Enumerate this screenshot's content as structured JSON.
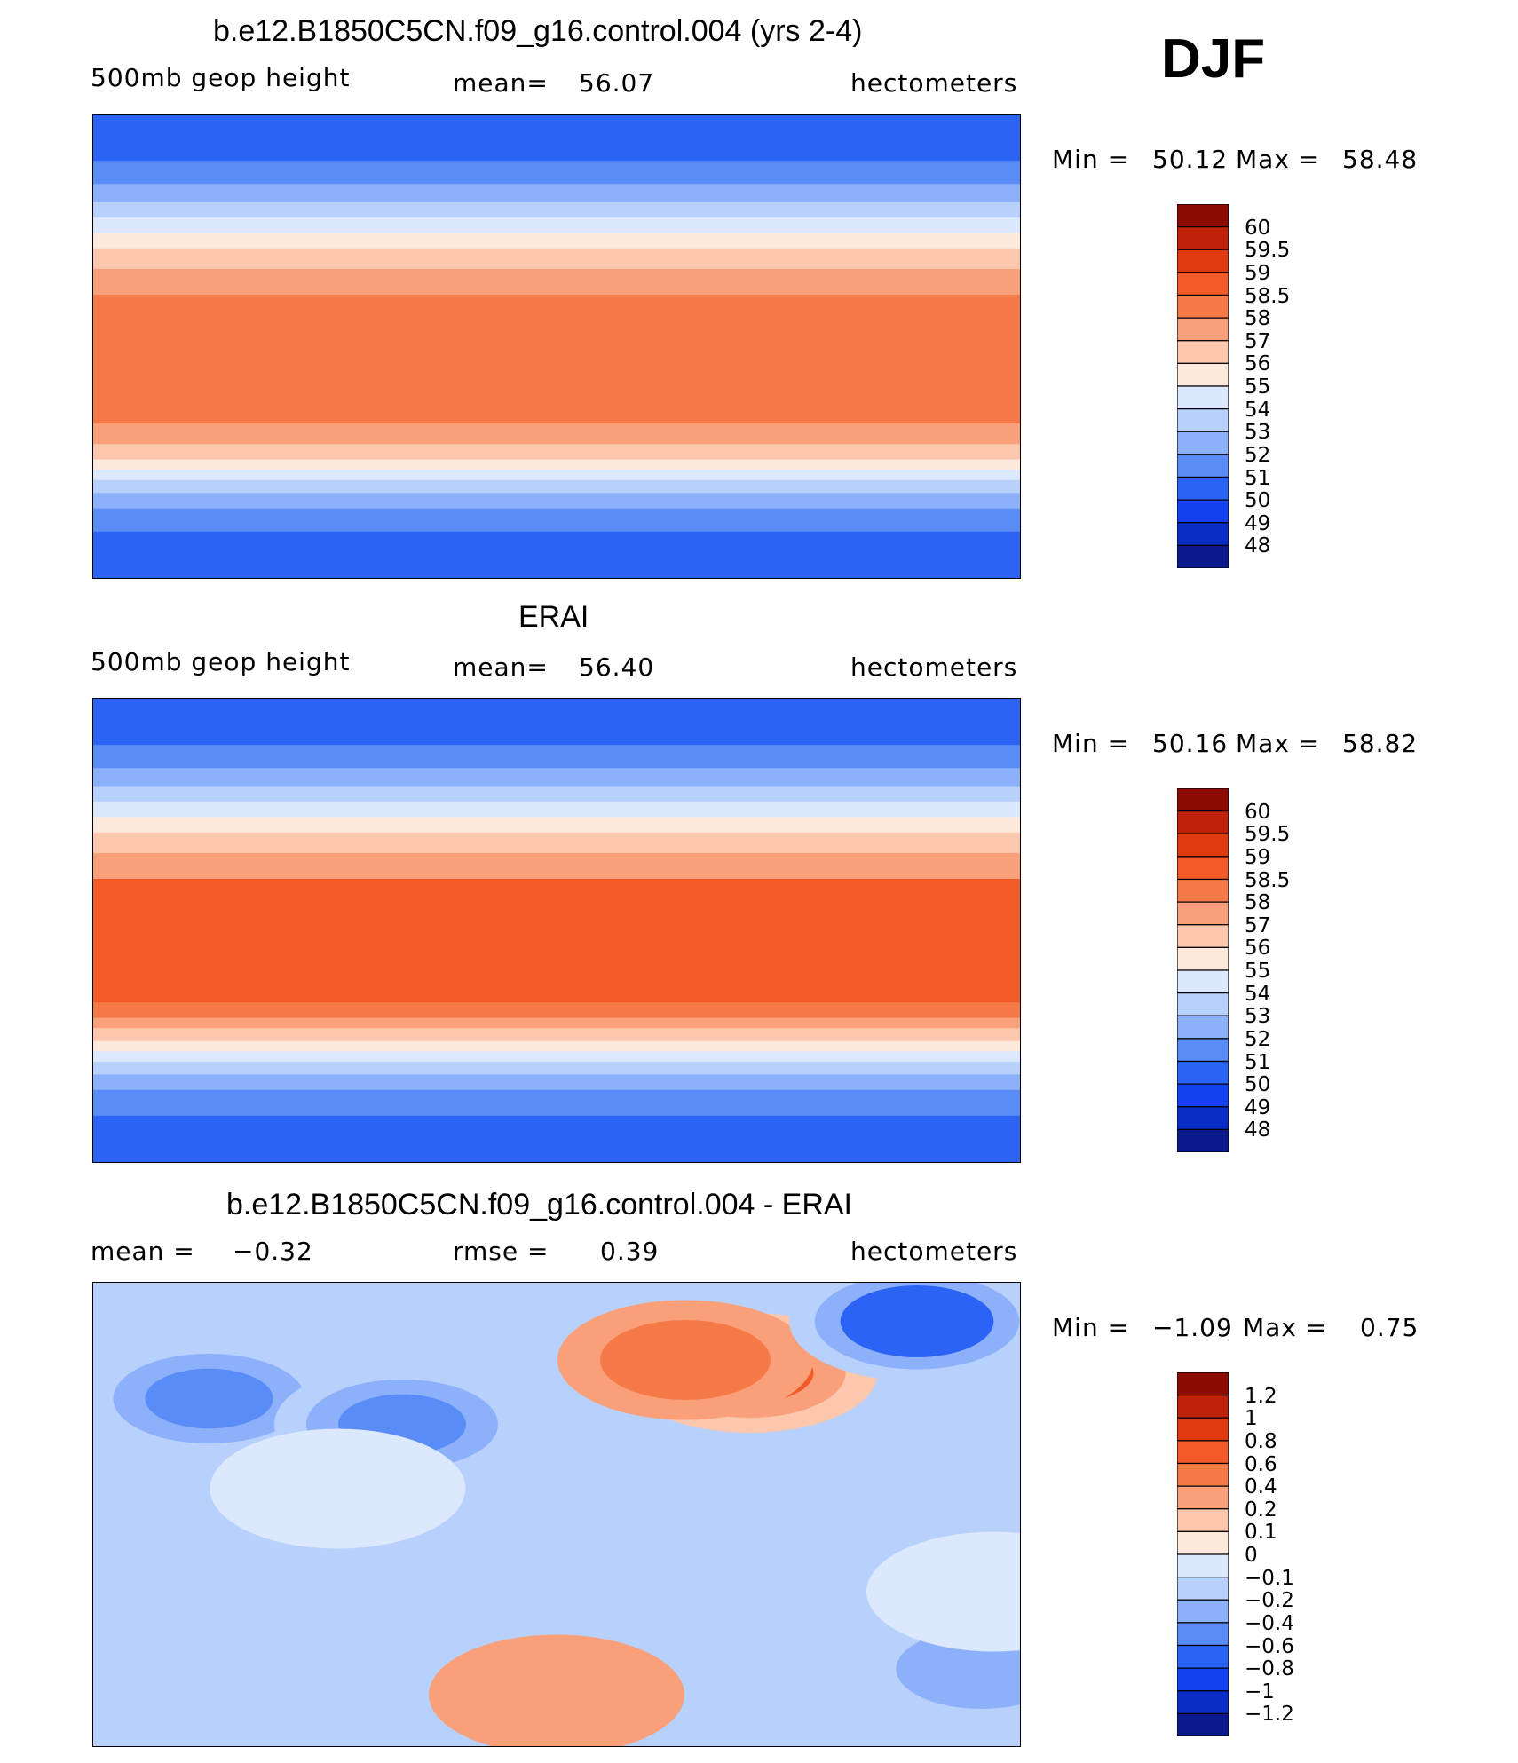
{
  "season": "DJF",
  "colors": {
    "abs": [
      "#0a1a8c",
      "#0a2dc8",
      "#1441f0",
      "#2b63f5",
      "#5a8cf8",
      "#8db0fa",
      "#b8d0fc",
      "#dbe8fd",
      "#fde9dc",
      "#fcc7ad",
      "#f9a07a",
      "#f57a48",
      "#f25a28",
      "#e03a10",
      "#bf2208",
      "#8c0c04"
    ],
    "diff": [
      "#0a1a8c",
      "#0a2dc8",
      "#1441f0",
      "#2b63f5",
      "#5a8cf8",
      "#8db0fa",
      "#b8d0fc",
      "#dbe8fd",
      "#fde9dc",
      "#fcc7ad",
      "#f9a07a",
      "#f57a48",
      "#f25a28",
      "#e03a10",
      "#bf2208",
      "#8c0c04"
    ]
  },
  "chart_data": [
    {
      "type": "heatmap",
      "title": "b.e12.B1850C5CN.f09_g16.control.004 (yrs 2-4)",
      "variable": "500mb geop height",
      "mean_label": "mean=",
      "mean_value": "56.07",
      "units": "hectometers",
      "min_label": "Min =",
      "min_value": "50.12",
      "max_label": "Max =",
      "max_value": "58.48",
      "colorbar_labels": [
        "60",
        "59.5",
        "59",
        "58.5",
        "58",
        "57",
        "56",
        "55",
        "54",
        "53",
        "52",
        "51",
        "50",
        "49",
        "48"
      ],
      "field_bands": [
        {
          "lat_top": 90,
          "lat_bottom": 72,
          "value": 50
        },
        {
          "lat_top": 72,
          "lat_bottom": 63,
          "value": 51
        },
        {
          "lat_top": 63,
          "lat_bottom": 56,
          "value": 52
        },
        {
          "lat_top": 56,
          "lat_bottom": 50,
          "value": 53
        },
        {
          "lat_top": 50,
          "lat_bottom": 44,
          "value": 54
        },
        {
          "lat_top": 44,
          "lat_bottom": 38,
          "value": 55
        },
        {
          "lat_top": 38,
          "lat_bottom": 30,
          "value": 56
        },
        {
          "lat_top": 30,
          "lat_bottom": 20,
          "value": 57
        },
        {
          "lat_top": 20,
          "lat_bottom": -30,
          "value": 58
        },
        {
          "lat_top": -30,
          "lat_bottom": -38,
          "value": 57
        },
        {
          "lat_top": -38,
          "lat_bottom": -44,
          "value": 56
        },
        {
          "lat_top": -44,
          "lat_bottom": -48,
          "value": 55
        },
        {
          "lat_top": -48,
          "lat_bottom": -52,
          "value": 54
        },
        {
          "lat_top": -52,
          "lat_bottom": -57,
          "value": 53
        },
        {
          "lat_top": -57,
          "lat_bottom": -63,
          "value": 52
        },
        {
          "lat_top": -63,
          "lat_bottom": -72,
          "value": 51
        },
        {
          "lat_top": -72,
          "lat_bottom": -90,
          "value": 50
        }
      ]
    },
    {
      "type": "heatmap",
      "title": "ERAI",
      "variable": "500mb geop height",
      "mean_label": "mean=",
      "mean_value": "56.40",
      "units": "hectometers",
      "min_label": "Min =",
      "min_value": "50.16",
      "max_label": "Max =",
      "max_value": "58.82",
      "colorbar_labels": [
        "60",
        "59.5",
        "59",
        "58.5",
        "58",
        "57",
        "56",
        "55",
        "54",
        "53",
        "52",
        "51",
        "50",
        "49",
        "48"
      ],
      "field_bands": [
        {
          "lat_top": 90,
          "lat_bottom": 72,
          "value": 50
        },
        {
          "lat_top": 72,
          "lat_bottom": 63,
          "value": 51
        },
        {
          "lat_top": 63,
          "lat_bottom": 56,
          "value": 52
        },
        {
          "lat_top": 56,
          "lat_bottom": 50,
          "value": 53
        },
        {
          "lat_top": 50,
          "lat_bottom": 44,
          "value": 54
        },
        {
          "lat_top": 44,
          "lat_bottom": 38,
          "value": 55
        },
        {
          "lat_top": 38,
          "lat_bottom": 30,
          "value": 56
        },
        {
          "lat_top": 30,
          "lat_bottom": 20,
          "value": 57
        },
        {
          "lat_top": 20,
          "lat_bottom": -28,
          "value": 58.5
        },
        {
          "lat_top": -28,
          "lat_bottom": -34,
          "value": 58
        },
        {
          "lat_top": -34,
          "lat_bottom": -38,
          "value": 57
        },
        {
          "lat_top": -38,
          "lat_bottom": -43,
          "value": 56
        },
        {
          "lat_top": -43,
          "lat_bottom": -47,
          "value": 55
        },
        {
          "lat_top": -47,
          "lat_bottom": -51,
          "value": 54
        },
        {
          "lat_top": -51,
          "lat_bottom": -56,
          "value": 53
        },
        {
          "lat_top": -56,
          "lat_bottom": -62,
          "value": 52
        },
        {
          "lat_top": -62,
          "lat_bottom": -72,
          "value": 51
        },
        {
          "lat_top": -72,
          "lat_bottom": -90,
          "value": 50
        }
      ]
    },
    {
      "type": "heatmap",
      "title": "b.e12.B1850C5CN.f09_g16.control.004 - ERAI",
      "mean_label": "mean =",
      "mean_value": "−0.32",
      "rmse_label": "rmse =",
      "rmse_value": "0.39",
      "units": "hectometers",
      "min_label": "Min =",
      "min_value": "−1.09",
      "max_label": "Max =",
      "max_value": "0.75",
      "colorbar_labels": [
        "1.2",
        "1",
        "0.8",
        "0.6",
        "0.4",
        "0.2",
        "0.1",
        "0",
        "−0.1",
        "−0.2",
        "−0.4",
        "−0.6",
        "−0.8",
        "−1",
        "−1.2"
      ],
      "background_value": -0.2,
      "anomalies": [
        {
          "lon": -75,
          "lat": 55,
          "value": 0.6
        },
        {
          "lon": -100,
          "lat": 60,
          "value": 0.4
        },
        {
          "lon": -150,
          "lat": -70,
          "value": 0.2
        },
        {
          "lon": 75,
          "lat": 45,
          "value": -0.6
        },
        {
          "lon": 150,
          "lat": 35,
          "value": -0.6
        },
        {
          "lon": -10,
          "lat": 75,
          "value": -0.8
        },
        {
          "lon": 15,
          "lat": -60,
          "value": -0.4
        },
        {
          "lon": 125,
          "lat": 10,
          "value": -0.1
        },
        {
          "lon": 20,
          "lat": -30,
          "value": -0.1
        }
      ]
    }
  ]
}
